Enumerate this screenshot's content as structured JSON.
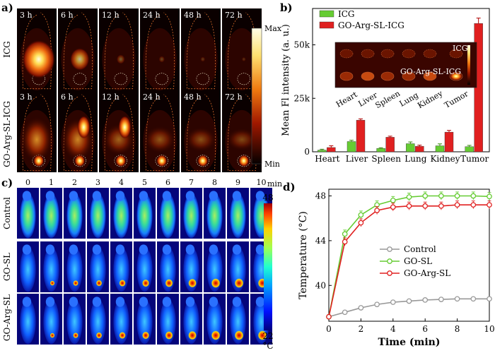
{
  "panel_a": {
    "label": "a)",
    "times": [
      "3 h",
      "6 h",
      "12 h",
      "24 h",
      "48 h",
      "72 h"
    ],
    "rows": [
      "ICG",
      "GO-Arg-SL-ICG"
    ],
    "colorbar": {
      "max": "Max",
      "min": "Min"
    }
  },
  "panel_b": {
    "label": "b)",
    "inset": {
      "label_top": "ICG",
      "label_bottom": "GO-Arg-SL-ICG",
      "organs": [
        "Heart",
        "Liver",
        "Spleen",
        "Lung",
        "Kidney",
        "Tumor"
      ]
    }
  },
  "panel_c": {
    "label": "c)",
    "minutes": [
      "0",
      "1",
      "2",
      "3",
      "4",
      "5",
      "6",
      "7",
      "8",
      "9",
      "10"
    ],
    "unit": "min",
    "rows": [
      "Control",
      "GO-SL",
      "GO-Arg-SL"
    ],
    "colorbar": {
      "max": "48",
      "min": "22",
      "unit": "°C"
    }
  },
  "panel_d": {
    "label": "d)"
  },
  "chart_data": [
    {
      "type": "bar",
      "categories": [
        "Heart",
        "Liver",
        "Spleen",
        "Lung",
        "Kidney",
        "Tumor"
      ],
      "series": [
        {
          "name": "ICG",
          "color": "#66cc33",
          "values": [
            800,
            4800,
            1600,
            3800,
            2800,
            2400
          ],
          "errors": [
            400,
            600,
            300,
            800,
            900,
            600
          ]
        },
        {
          "name": "GO-Arg-SL-ICG",
          "color": "#e02020",
          "values": [
            2000,
            14800,
            6800,
            2600,
            9200,
            60000
          ],
          "errors": [
            800,
            600,
            500,
            500,
            800,
            2500
          ]
        }
      ],
      "xlabel": "",
      "ylabel": "Mean Fl intensity (a. u.)",
      "ylim": [
        0,
        67000
      ],
      "yticks": [
        0,
        25000,
        50000
      ],
      "ytick_labels": [
        "0",
        "25k",
        "50k"
      ],
      "legend": "top-left"
    },
    {
      "type": "line",
      "x": [
        0,
        1,
        2,
        3,
        4,
        5,
        6,
        7,
        8,
        9,
        10
      ],
      "series": [
        {
          "name": "Control",
          "color": "#999999",
          "values": [
            37.2,
            37.6,
            38.0,
            38.3,
            38.5,
            38.6,
            38.7,
            38.75,
            38.8,
            38.8,
            38.8
          ]
        },
        {
          "name": "GO-SL",
          "color": "#66cc33",
          "values": [
            37.2,
            44.6,
            46.3,
            47.2,
            47.6,
            47.9,
            48.0,
            48.0,
            48.0,
            48.0,
            47.95
          ]
        },
        {
          "name": "GO-Arg-SL",
          "color": "#e02020",
          "values": [
            37.2,
            43.9,
            45.6,
            46.7,
            47.0,
            47.1,
            47.1,
            47.1,
            47.2,
            47.2,
            47.2
          ]
        }
      ],
      "xlabel": "Time (min)",
      "ylabel": "Temperature (°C)",
      "xlim": [
        0,
        10
      ],
      "ylim": [
        36.8,
        48.6
      ],
      "xticks": [
        0,
        2,
        4,
        6,
        8,
        10
      ],
      "yticks": [
        40,
        44,
        48
      ],
      "legend": "center-right"
    }
  ]
}
